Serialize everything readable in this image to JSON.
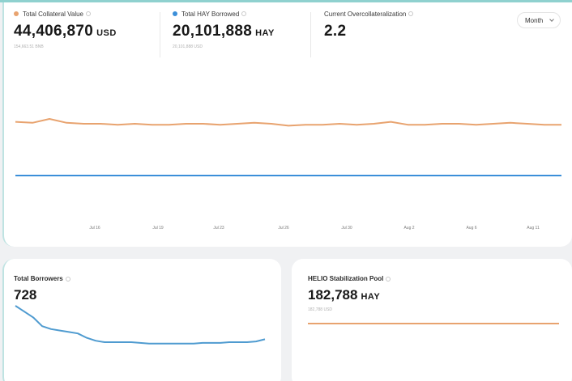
{
  "colors": {
    "collateral": "#e8a36f",
    "borrowed": "#3b8fd9",
    "borrowers_line": "#4f9bd0",
    "stability_line": "#e8a36f"
  },
  "stats": {
    "collateral": {
      "label": "Total Collateral Value",
      "value": "44,406,870",
      "unit": "USD",
      "sub": "154,663.51 BNB"
    },
    "borrowed": {
      "label": "Total HAY Borrowed",
      "value": "20,101,888",
      "unit": "HAY",
      "sub": "20,101,888 USD"
    },
    "overcollateralization": {
      "label": "Current Overcollateralization",
      "value": "2.2"
    }
  },
  "period_select": {
    "value": "Month",
    "icon": "chevron-down-icon"
  },
  "chart_data": [
    {
      "type": "line",
      "x_ticks": [
        "Jul 16",
        "Jul 19",
        "Jul 23",
        "Jul 26",
        "Jul 30",
        "Aug 2",
        "Aug 6",
        "Aug 11"
      ],
      "series": [
        {
          "values": [
            2.22,
            2.21,
            2.25,
            2.21,
            2.2,
            2.2,
            2.19,
            2.2,
            2.19,
            2.19,
            2.2,
            2.2,
            2.19,
            2.2,
            2.21,
            2.2,
            2.18,
            2.19,
            2.19,
            2.2,
            2.19,
            2.2,
            2.22,
            2.19,
            2.19,
            2.2,
            2.2,
            2.19,
            2.2,
            2.21,
            2.2,
            2.19,
            2.19
          ]
        },
        {
          "values": [
            1.0,
            1.0,
            1.0,
            1.0,
            1.0,
            1.0,
            1.0,
            1.0,
            1.0,
            1.0,
            1.0,
            1.0,
            1.0,
            1.0,
            1.0,
            1.0,
            1.0,
            1.0,
            1.0,
            1.0,
            1.0,
            1.0,
            1.0,
            1.0,
            1.0,
            1.0,
            1.0,
            1.0,
            1.0,
            1.0,
            1.0,
            1.0,
            1.0
          ]
        }
      ]
    },
    {
      "type": "line",
      "series": [
        {
          "values": [
            728,
            720,
            712,
            700,
            696,
            694,
            692,
            690,
            684,
            680,
            678,
            678,
            678,
            678,
            677,
            676,
            676,
            676,
            676,
            676,
            676,
            677,
            677,
            677,
            678,
            678,
            678,
            679,
            682
          ]
        }
      ]
    },
    {
      "type": "line",
      "series": [
        {
          "values": [
            182788,
            182788,
            182788,
            182788,
            182788,
            182788,
            182788,
            182788
          ]
        }
      ]
    }
  ],
  "borrowers": {
    "label": "Total Borrowers",
    "value": "728"
  },
  "stability_pool": {
    "label": "HELIO Stabilization Pool",
    "value": "182,788",
    "unit": "HAY",
    "sub": "182,788 USD"
  }
}
